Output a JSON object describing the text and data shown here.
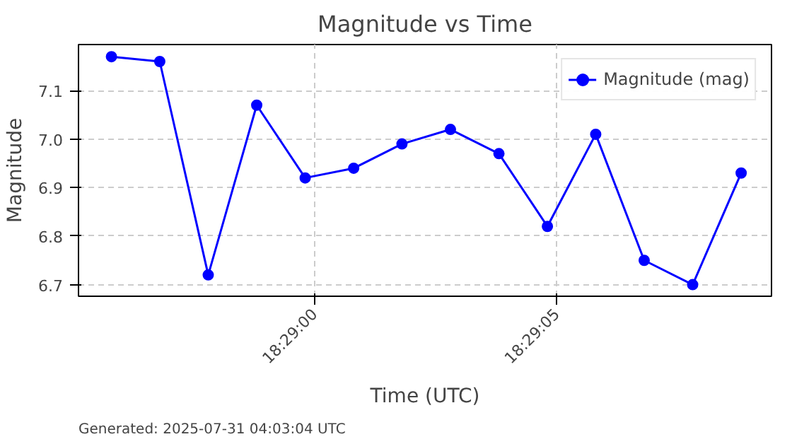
{
  "chart_data": {
    "type": "line",
    "title": "Magnitude vs Time",
    "xlabel": "Time (UTC)",
    "ylabel": "Magnitude",
    "x": [
      18.482167,
      18.482444,
      18.482722,
      18.483,
      18.483278,
      18.483556,
      18.483833,
      18.484111,
      18.484389,
      18.484667,
      18.484944,
      18.485222,
      18.4855,
      18.485778
    ],
    "series": [
      {
        "name": "Magnitude (mag)",
        "color": "#0000ff",
        "values": [
          7.17,
          7.16,
          6.72,
          7.07,
          6.92,
          6.94,
          6.99,
          7.02,
          6.97,
          6.82,
          7.01,
          6.75,
          6.7,
          6.93
        ]
      }
    ],
    "xlim": [
      18.481978,
      18.485952
    ],
    "xticks": [
      {
        "value": 18.483333,
        "label": "18:29:00"
      },
      {
        "value": 18.484722,
        "label": "18:29:05"
      }
    ],
    "ylim": [
      6.676,
      7.195
    ],
    "yticks": [
      6.7,
      6.8,
      6.9,
      {
        "value": 7.0,
        "label": "7.0"
      },
      7.1
    ],
    "grid": true,
    "legend": "top right",
    "marker": "circle",
    "line_style": "solid",
    "annotations": [
      "Generated: 2025-07-31 04:03:04 UTC"
    ]
  }
}
